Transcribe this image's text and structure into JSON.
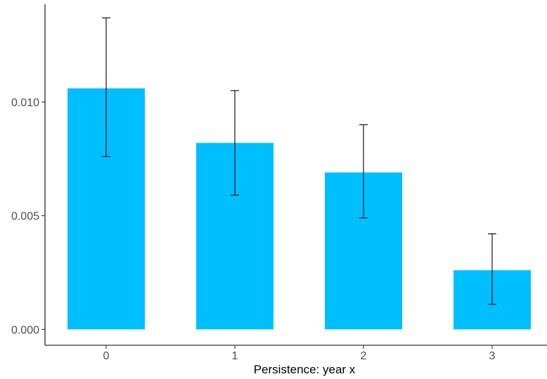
{
  "chart_data": {
    "type": "bar",
    "title": "",
    "xlabel": "Persistence: year x",
    "ylabel": "",
    "categories": [
      "0",
      "1",
      "2",
      "3"
    ],
    "values": [
      0.0106,
      0.0082,
      0.0069,
      0.0026
    ],
    "error_low": [
      0.0076,
      0.0059,
      0.0049,
      0.0011
    ],
    "error_high": [
      0.0137,
      0.0105,
      0.009,
      0.0042
    ],
    "yticks": [
      0.0,
      0.005,
      0.01
    ],
    "ytick_labels": [
      "0.000",
      "0.005",
      "0.010"
    ],
    "ylim": [
      -0.0007,
      0.0143
    ],
    "grid": false,
    "legend": "none",
    "bar_color": "#00bfff",
    "errorbar_color": "#000000",
    "axis_color": "#000000"
  }
}
